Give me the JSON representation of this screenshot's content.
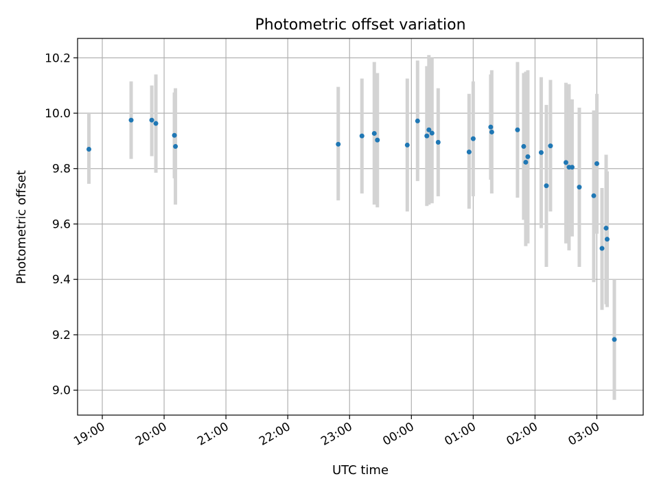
{
  "chart_data": {
    "type": "scatter",
    "title": "Photometric offset variation",
    "xlabel": "UTC time",
    "ylabel": "Photometric offset",
    "x_axis": {
      "kind": "time",
      "range": [
        "18:36",
        "03:45"
      ],
      "ticks": [
        "19:00",
        "20:00",
        "21:00",
        "22:00",
        "23:00",
        "00:00",
        "01:00",
        "02:00",
        "03:00"
      ]
    },
    "y_axis": {
      "range": [
        8.91,
        10.27
      ],
      "ticks": [
        9.0,
        9.2,
        9.4,
        9.6,
        9.8,
        10.0,
        10.2
      ],
      "tick_labels": [
        "9.0",
        "9.2",
        "9.4",
        "9.6",
        "9.8",
        "10.0",
        "10.2"
      ]
    },
    "grid": true,
    "marker_color": "#1f77b4",
    "errorbar_color": "#d3d3d3",
    "points": [
      {
        "t": "18:47",
        "y": 9.87,
        "lo": 9.745,
        "hi": 10.0
      },
      {
        "t": "19:28",
        "y": 9.975,
        "lo": 9.835,
        "hi": 10.115
      },
      {
        "t": "19:48",
        "y": 9.975,
        "lo": 9.845,
        "hi": 10.1
      },
      {
        "t": "19:52",
        "y": 9.963,
        "lo": 9.785,
        "hi": 10.14
      },
      {
        "t": "20:10",
        "y": 9.92,
        "lo": 9.765,
        "hi": 10.075
      },
      {
        "t": "20:11",
        "y": 9.88,
        "lo": 9.67,
        "hi": 10.09
      },
      {
        "t": "22:49",
        "y": 9.888,
        "lo": 9.685,
        "hi": 10.095
      },
      {
        "t": "23:12",
        "y": 9.918,
        "lo": 9.71,
        "hi": 10.125
      },
      {
        "t": "23:24",
        "y": 9.927,
        "lo": 9.67,
        "hi": 10.185
      },
      {
        "t": "23:27",
        "y": 9.903,
        "lo": 9.66,
        "hi": 10.145
      },
      {
        "t": "23:56",
        "y": 9.885,
        "lo": 9.645,
        "hi": 10.125
      },
      {
        "t": "00:06",
        "y": 9.972,
        "lo": 9.755,
        "hi": 10.19
      },
      {
        "t": "00:15",
        "y": 9.918,
        "lo": 9.665,
        "hi": 10.17
      },
      {
        "t": "00:17",
        "y": 9.94,
        "lo": 9.67,
        "hi": 10.21
      },
      {
        "t": "00:20",
        "y": 9.928,
        "lo": 9.675,
        "hi": 10.2
      },
      {
        "t": "00:26",
        "y": 9.895,
        "lo": 9.7,
        "hi": 10.09
      },
      {
        "t": "00:56",
        "y": 9.86,
        "lo": 9.655,
        "hi": 10.07
      },
      {
        "t": "01:00",
        "y": 9.908,
        "lo": 9.7,
        "hi": 10.115
      },
      {
        "t": "01:17",
        "y": 9.95,
        "lo": 9.76,
        "hi": 10.14
      },
      {
        "t": "01:18",
        "y": 9.932,
        "lo": 9.71,
        "hi": 10.155
      },
      {
        "t": "01:43",
        "y": 9.94,
        "lo": 9.695,
        "hi": 10.185
      },
      {
        "t": "01:49",
        "y": 9.88,
        "lo": 9.615,
        "hi": 10.145
      },
      {
        "t": "01:51",
        "y": 9.823,
        "lo": 9.52,
        "hi": 10.15
      },
      {
        "t": "01:53",
        "y": 9.843,
        "lo": 9.53,
        "hi": 10.155
      },
      {
        "t": "02:06",
        "y": 9.858,
        "lo": 9.585,
        "hi": 10.13
      },
      {
        "t": "02:11",
        "y": 9.738,
        "lo": 9.445,
        "hi": 10.03
      },
      {
        "t": "02:15",
        "y": 9.882,
        "lo": 9.645,
        "hi": 10.12
      },
      {
        "t": "02:30",
        "y": 9.822,
        "lo": 9.53,
        "hi": 10.11
      },
      {
        "t": "02:33",
        "y": 9.805,
        "lo": 9.505,
        "hi": 10.105
      },
      {
        "t": "02:36",
        "y": 9.805,
        "lo": 9.555,
        "hi": 10.05
      },
      {
        "t": "02:43",
        "y": 9.733,
        "lo": 9.445,
        "hi": 10.02
      },
      {
        "t": "02:57",
        "y": 9.702,
        "lo": 9.39,
        "hi": 10.01
      },
      {
        "t": "03:00",
        "y": 9.818,
        "lo": 9.565,
        "hi": 10.07
      },
      {
        "t": "03:05",
        "y": 9.512,
        "lo": 9.29,
        "hi": 9.73
      },
      {
        "t": "03:09",
        "y": 9.585,
        "lo": 9.31,
        "hi": 9.85
      },
      {
        "t": "03:10",
        "y": 9.545,
        "lo": 9.3,
        "hi": 9.79
      },
      {
        "t": "03:17",
        "y": 9.183,
        "lo": 8.965,
        "hi": 9.4
      }
    ]
  }
}
